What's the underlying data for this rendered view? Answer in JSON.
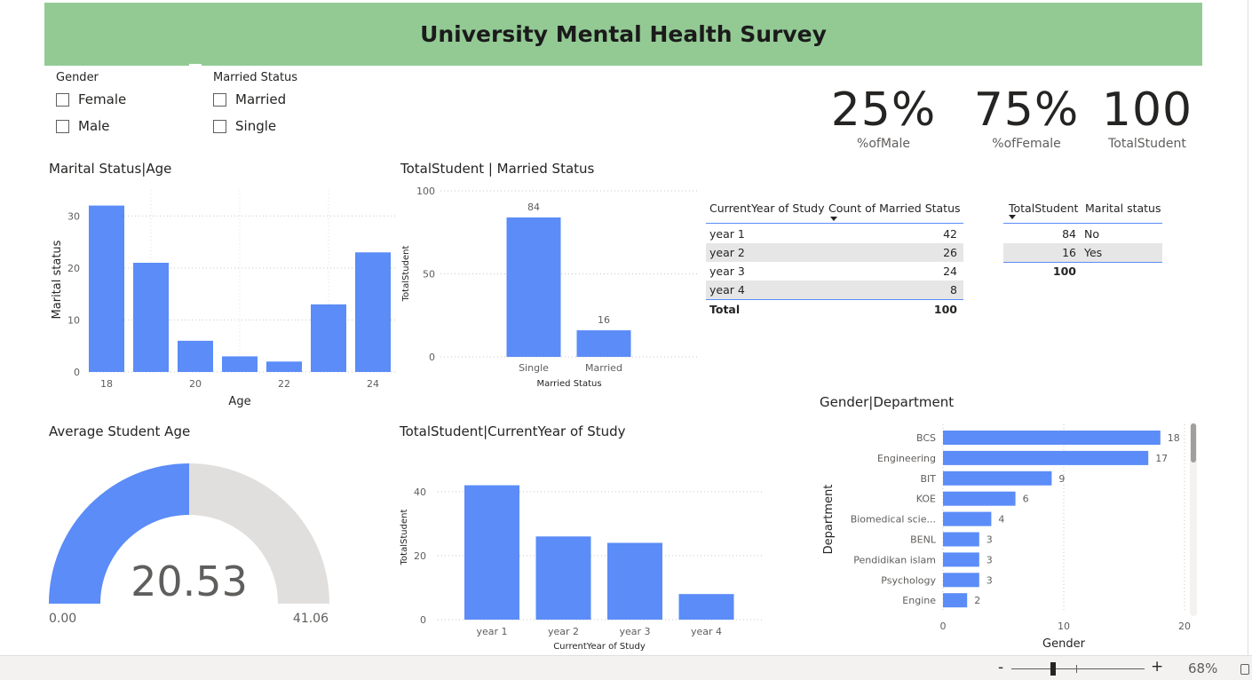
{
  "title": "University Mental Health Survey",
  "slicers": {
    "gender": {
      "title": "Gender",
      "options": [
        "Female",
        "Male"
      ]
    },
    "married": {
      "title": "Married Status",
      "options": [
        "Married",
        "Single"
      ]
    }
  },
  "kpis": [
    {
      "value": "25%",
      "label": "%ofMale"
    },
    {
      "value": "75%",
      "label": "%ofFemale"
    },
    {
      "value": "100",
      "label": "TotalStudent"
    }
  ],
  "visual_titles": {
    "marital_age": "Marital Status|Age",
    "married_status": "TotalStudent | Married Status",
    "avg_age": "Average Student Age",
    "year_study": "TotalStudent|CurrentYear of Study",
    "gender_dept": "Gender|Department"
  },
  "table_year": {
    "headers": [
      "CurrentYear of Study",
      "Count of Married Status"
    ],
    "rows": [
      [
        "year 1",
        "42"
      ],
      [
        "year 2",
        "26"
      ],
      [
        "year 3",
        "24"
      ],
      [
        "year 4",
        "8"
      ]
    ],
    "total": [
      "Total",
      "100"
    ]
  },
  "table_marital": {
    "headers": [
      "TotalStudent",
      "Marital status"
    ],
    "rows": [
      [
        "84",
        "No"
      ],
      [
        "16",
        "Yes"
      ]
    ],
    "total": "100"
  },
  "gauge": {
    "value": "20.53",
    "min": "0.00",
    "max": "41.06",
    "fraction": 0.5
  },
  "colors": {
    "bar": "#5b8cf7",
    "title_bg": "#93ca94",
    "gauge_track": "#e1dfdd"
  },
  "zoom": {
    "minus": "-",
    "plus": "+",
    "level": "68%"
  },
  "chart_data": [
    {
      "type": "bar",
      "title": "Marital Status|Age",
      "x": [
        18,
        19,
        20,
        21,
        22,
        23,
        24
      ],
      "values": [
        32,
        21,
        6,
        3,
        2,
        13,
        23
      ],
      "xticks": [
        "18",
        "20",
        "22",
        "24"
      ],
      "yticks": [
        "0",
        "10",
        "20",
        "30"
      ],
      "xlabel": "Age",
      "ylabel": "Marital status",
      "ylim": [
        0,
        35
      ]
    },
    {
      "type": "bar",
      "title": "TotalStudent | Married Status",
      "categories": [
        "Single",
        "Married"
      ],
      "values": [
        84,
        16
      ],
      "data_labels": [
        "84",
        "16"
      ],
      "yticks": [
        "0",
        "50",
        "100"
      ],
      "xlabel": "Married Status",
      "ylabel": "TotalStudent",
      "ylim": [
        0,
        100
      ]
    },
    {
      "type": "bar",
      "title": "TotalStudent|CurrentYear of Study",
      "categories": [
        "year 1",
        "year 2",
        "year 3",
        "year 4"
      ],
      "values": [
        42,
        26,
        24,
        8
      ],
      "yticks": [
        "0",
        "20",
        "40"
      ],
      "xlabel": "CurrentYear of Study",
      "ylabel": "TotalStudent",
      "ylim": [
        0,
        48
      ]
    },
    {
      "type": "bar",
      "orientation": "horizontal",
      "title": "Gender|Department",
      "categories": [
        "BCS",
        "Engineering",
        "BIT",
        "KOE",
        "Biomedical scie...",
        "BENL",
        "Pendidikan islam",
        "Psychology",
        "Engine"
      ],
      "values": [
        18,
        17,
        9,
        6,
        4,
        3,
        3,
        3,
        2
      ],
      "data_labels": [
        "18",
        "17",
        "9",
        "6",
        "4",
        "3",
        "3",
        "3",
        "2"
      ],
      "xticks": [
        "0",
        "10",
        "20"
      ],
      "xlabel": "Gender",
      "ylabel": "Department",
      "xlim": [
        0,
        20
      ]
    }
  ]
}
